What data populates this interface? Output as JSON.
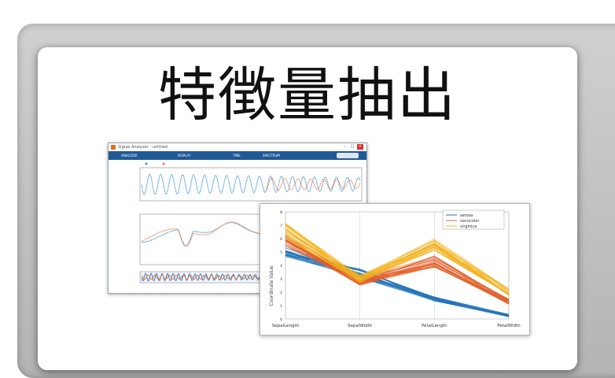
{
  "slide": {
    "title": "特徴量抽出"
  },
  "app_window": {
    "title": "Signal Analyzer - untitled",
    "tabs": [
      "ANALYZER",
      "DISPLAY",
      "TIME",
      "SPECTRUM"
    ],
    "series_colors": [
      "#3c8fd8",
      "#f07a3a"
    ]
  },
  "chart_data": {
    "type": "line",
    "chart_kind": "parallel-coordinates",
    "categories": [
      "SepalLength",
      "SepalWidth",
      "PetalLength",
      "PetalWidth"
    ],
    "ylabel": "Coordinate Value",
    "ylim": [
      0,
      8
    ],
    "yticks": [
      0,
      1,
      2,
      3,
      4,
      5,
      6,
      7,
      8
    ],
    "legend_position": "top-right",
    "series": [
      {
        "name": "setosa",
        "color": "#2474b8",
        "count": 30,
        "mean": [
          5.0,
          3.4,
          1.5,
          0.25
        ],
        "spread": [
          0.35,
          0.35,
          0.17,
          0.1
        ]
      },
      {
        "name": "versicolor",
        "color": "#e0602a",
        "count": 30,
        "mean": [
          5.9,
          2.8,
          4.3,
          1.3
        ],
        "spread": [
          0.5,
          0.3,
          0.45,
          0.2
        ]
      },
      {
        "name": "virginica",
        "color": "#f2b21d",
        "count": 30,
        "mean": [
          6.6,
          3.0,
          5.55,
          2.0
        ],
        "spread": [
          0.6,
          0.3,
          0.5,
          0.25
        ]
      }
    ]
  }
}
